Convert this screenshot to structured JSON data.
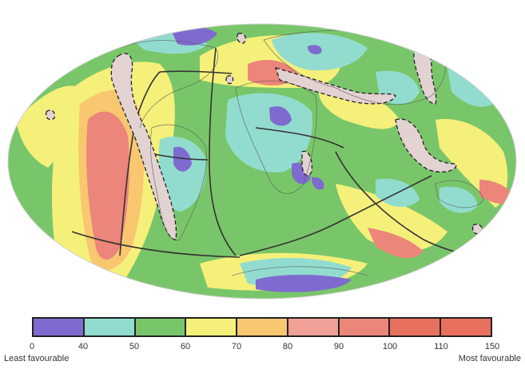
{
  "legend": {
    "ticks": [
      "0",
      "40",
      "50",
      "60",
      "70",
      "80",
      "90",
      "100",
      "110",
      "150"
    ],
    "colors": [
      "#7f6bd0",
      "#92dccf",
      "#79c66a",
      "#f5f07a",
      "#f8c770",
      "#f0a096",
      "#ec857a",
      "#e8705f",
      "#e9705f"
    ],
    "min_label": "Least favourable",
    "max_label": "Most favourable"
  },
  "map": {
    "projection": "mollweide",
    "background_color": "#79c66a",
    "plate_boundary_color": "#333333",
    "subduction_zone_fill": "#e3d2d2"
  }
}
